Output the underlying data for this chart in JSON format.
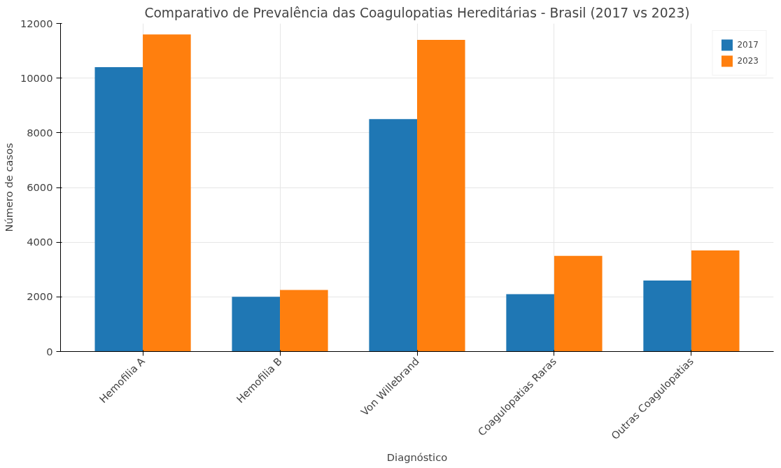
{
  "chart_data": {
    "type": "bar",
    "title": "Comparativo de Prevalência das Coagulopatias Hereditárias - Brasil (2017 vs 2023)",
    "xlabel": "Diagnóstico",
    "ylabel": "Número de casos",
    "categories": [
      "Hemofilia A",
      "Hemofilia B",
      "Von Willebrand",
      "Coagulopatias Raras",
      "Outras Coagulopatias"
    ],
    "series": [
      {
        "name": "2017",
        "color": "#1f77b4",
        "values": [
          10400,
          2000,
          8500,
          2100,
          2600
        ]
      },
      {
        "name": "2023",
        "color": "#ff7f0e",
        "values": [
          11600,
          2250,
          11400,
          3500,
          3700
        ]
      }
    ],
    "ylim": [
      0,
      12000
    ],
    "yticks": [
      0,
      2000,
      4000,
      6000,
      8000,
      10000,
      12000
    ],
    "grid": true,
    "legend": "top right"
  }
}
